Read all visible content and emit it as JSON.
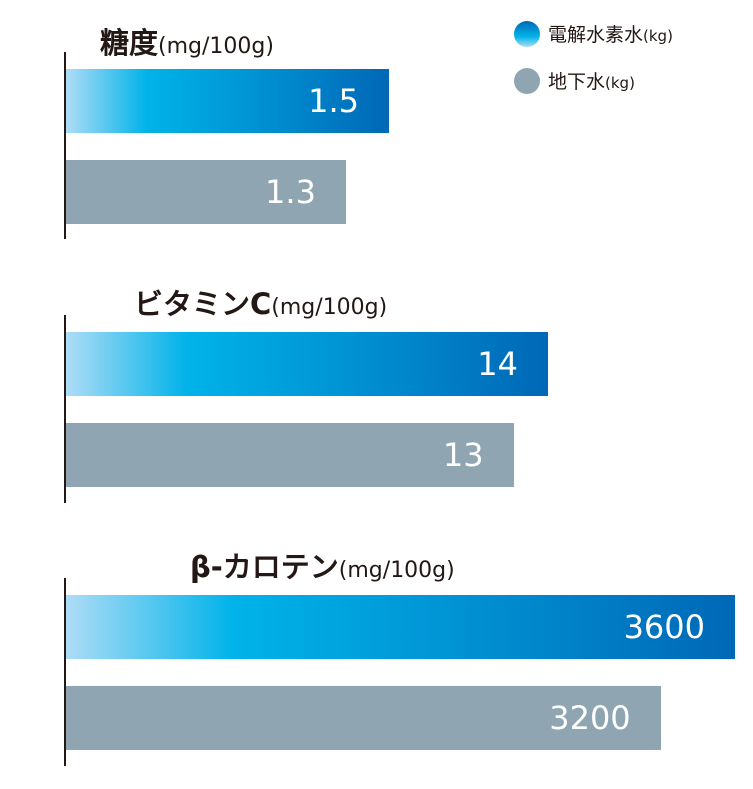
{
  "legend": [
    {
      "label": "電解水素水",
      "unit": "(kg)",
      "color": "#0096d6"
    },
    {
      "label": "地下水",
      "unit": "(kg)",
      "color": "#8fa5b2"
    }
  ],
  "chart_data": [
    {
      "type": "bar",
      "orientation": "horizontal",
      "title": "糖度",
      "unit": "(mg/100g)",
      "series": [
        {
          "name": "電解水素水(kg)",
          "values": [
            1.5
          ]
        },
        {
          "name": "地下水(kg)",
          "values": [
            1.3
          ]
        }
      ]
    },
    {
      "type": "bar",
      "orientation": "horizontal",
      "title": "ビタミンC",
      "unit": "(mg/100g)",
      "series": [
        {
          "name": "電解水素水(kg)",
          "values": [
            14
          ]
        },
        {
          "name": "地下水(kg)",
          "values": [
            13
          ]
        }
      ]
    },
    {
      "type": "bar",
      "orientation": "horizontal",
      "title": "β-カロテン",
      "unit": "(mg/100g)",
      "series": [
        {
          "name": "電解水素水(kg)",
          "values": [
            3600
          ]
        },
        {
          "name": "地下水(kg)",
          "values": [
            3200
          ]
        }
      ]
    }
  ]
}
